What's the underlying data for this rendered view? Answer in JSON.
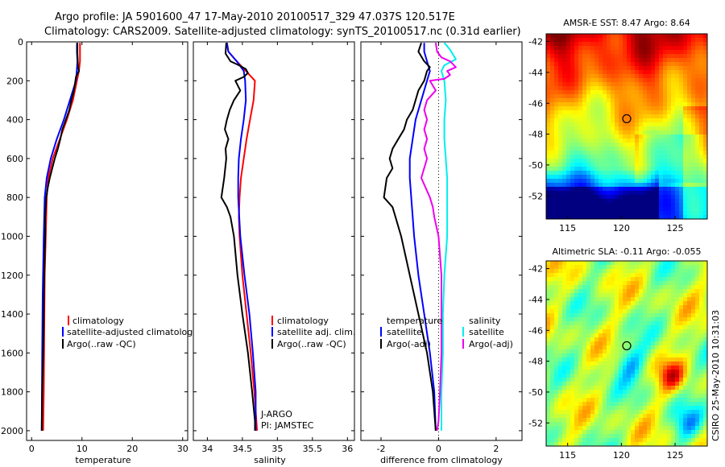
{
  "header": {
    "line1": "Argo profile: JA 5901600_47 17-May-2010 20100517_329 47.037S 120.517E",
    "line2": "Climatology: CARS2009. Satellite-adjusted climatology: synTS_20100517.nc (0.31d earlier)"
  },
  "colors": {
    "climatology": "#ff0000",
    "satellite": "#0000ff",
    "argo": "#000000",
    "sat_diff": "#00eeee",
    "argo_sal_diff": "#ee00ee"
  },
  "chart_data": [
    {
      "type": "line",
      "name": "temperature",
      "xlabel": "temperature",
      "xlim": [
        -1,
        31
      ],
      "ylim": [
        2050,
        0
      ],
      "xticks": [
        "0",
        "10",
        "20",
        "30"
      ],
      "yticks": [
        "0",
        "200",
        "400",
        "600",
        "800",
        "1000",
        "1200",
        "1400",
        "1600",
        "1800",
        "2000"
      ],
      "legend": [
        "climatology",
        "satellite-adjusted climatology",
        "Argo(..raw -QC)"
      ],
      "series": [
        {
          "name": "climatology",
          "x": [
            9.6,
            9.6,
            9.6,
            9.4,
            9.0,
            8.2,
            7.0,
            5.6,
            4.2,
            3.3,
            3.0,
            2.8,
            2.6,
            2.5,
            2.4,
            2.3
          ],
          "y": [
            5,
            50,
            100,
            150,
            200,
            300,
            400,
            500,
            600,
            700,
            800,
            1000,
            1200,
            1500,
            1800,
            2000
          ]
        },
        {
          "name": "satellite-adjusted climatology",
          "x": [
            9.0,
            9.0,
            9.1,
            9.0,
            8.8,
            7.6,
            6.4,
            5.0,
            3.8,
            3.0,
            2.6,
            2.4,
            2.2,
            2.1,
            2.0
          ],
          "y": [
            5,
            50,
            100,
            140,
            200,
            300,
            400,
            500,
            600,
            700,
            800,
            1000,
            1300,
            1600,
            2000
          ]
        },
        {
          "name": "Argo(..raw -QC)",
          "x": [
            9.1,
            9.1,
            9.2,
            9.4,
            8.8,
            8.4,
            7.9,
            7.5,
            6.8,
            6.1,
            5.7,
            5.2,
            4.6,
            4.1,
            3.6,
            3.2,
            2.9,
            2.8,
            2.7,
            2.7,
            2.5,
            2.4,
            2.3,
            2.1,
            2.0
          ],
          "y": [
            5,
            60,
            120,
            150,
            180,
            250,
            300,
            350,
            400,
            450,
            500,
            550,
            600,
            650,
            700,
            750,
            800,
            850,
            900,
            1000,
            1200,
            1400,
            1600,
            1800,
            2000
          ]
        }
      ]
    },
    {
      "type": "line",
      "name": "salinity",
      "xlabel": "salinity",
      "xlim": [
        33.8,
        36.1
      ],
      "ylim": [
        2050,
        0
      ],
      "xticks": [
        "34",
        "34.5",
        "35",
        "35.5",
        "36"
      ],
      "legend": [
        "climatology",
        "satellite adj. clim.",
        "Argo(..raw -QC)"
      ],
      "annotations": [
        "J-ARGO",
        "PI: JAMSTEC"
      ],
      "series": [
        {
          "name": "climatology",
          "x": [
            34.28,
            34.3,
            34.42,
            34.55,
            34.68,
            34.66,
            34.61,
            34.56,
            34.52,
            34.48,
            34.46,
            34.45,
            34.46,
            34.5,
            34.56,
            34.62,
            34.67,
            34.7,
            34.71
          ],
          "y": [
            5,
            50,
            100,
            150,
            200,
            300,
            400,
            500,
            600,
            700,
            800,
            900,
            1000,
            1200,
            1400,
            1600,
            1800,
            1950,
            2000
          ]
        },
        {
          "name": "satellite adj. clim.",
          "x": [
            34.28,
            34.3,
            34.42,
            34.52,
            34.54,
            34.55,
            34.52,
            34.48,
            34.45,
            34.44,
            34.44,
            34.47,
            34.53,
            34.6,
            34.65,
            34.69,
            34.69
          ],
          "y": [
            5,
            50,
            100,
            150,
            200,
            300,
            400,
            500,
            600,
            700,
            800,
            1000,
            1200,
            1400,
            1600,
            1800,
            2000
          ]
        },
        {
          "name": "Argo(..raw -QC)",
          "x": [
            34.27,
            34.26,
            34.33,
            34.45,
            34.55,
            34.58,
            34.52,
            34.4,
            34.47,
            34.38,
            34.32,
            34.28,
            34.25,
            34.3,
            34.26,
            34.27,
            34.24,
            34.2,
            34.28,
            34.33,
            34.38,
            34.43,
            34.5,
            34.58,
            34.64,
            34.68,
            34.68
          ],
          "y": [
            5,
            60,
            100,
            120,
            140,
            160,
            180,
            200,
            250,
            300,
            350,
            400,
            450,
            500,
            550,
            600,
            700,
            800,
            850,
            900,
            1000,
            1200,
            1400,
            1600,
            1800,
            1950,
            2000
          ]
        }
      ]
    },
    {
      "type": "line",
      "name": "difference",
      "xlabel": "difference from climatology",
      "xlim": [
        -2.7,
        2.9
      ],
      "ylim": [
        2050,
        0
      ],
      "xticks": [
        "-2",
        "0",
        "2"
      ],
      "legend_temperature": [
        "temperature",
        "satellite",
        "Argo(-adj)"
      ],
      "legend_salinity": [
        "salinity",
        "satellite",
        "Argo(-adj)"
      ],
      "series": [
        {
          "name": "temperature satellite",
          "x": [
            -0.5,
            -0.5,
            -0.4,
            -0.3,
            -0.4,
            -0.6,
            -0.8,
            -0.9,
            -1.0,
            -1.0,
            -0.95,
            -0.9,
            -0.85,
            -0.7,
            -0.5,
            -0.3,
            -0.15,
            -0.1
          ],
          "y": [
            5,
            50,
            100,
            150,
            200,
            300,
            400,
            500,
            600,
            700,
            800,
            900,
            1000,
            1200,
            1400,
            1600,
            1800,
            2000
          ]
        },
        {
          "name": "temperature Argo(-adj)",
          "x": [
            -0.6,
            -0.7,
            -0.5,
            -0.3,
            -0.4,
            -0.5,
            -0.7,
            -0.8,
            -0.9,
            -1.1,
            -1.2,
            -1.4,
            -1.6,
            -1.7,
            -1.6,
            -1.8,
            -1.9,
            -1.6,
            -1.5,
            -1.3,
            -1.0,
            -0.7,
            -0.4,
            -0.2,
            -0.1
          ],
          "y": [
            5,
            50,
            100,
            130,
            150,
            200,
            250,
            300,
            350,
            400,
            450,
            500,
            550,
            600,
            650,
            700,
            800,
            850,
            900,
            1000,
            1200,
            1400,
            1600,
            1800,
            2000
          ]
        },
        {
          "name": "salinity satellite",
          "x": [
            0.2,
            0.4,
            0.6,
            0.2,
            0.1,
            0.2,
            0.25,
            0.2,
            0.2,
            0.25,
            0.3,
            0.3,
            0.3,
            0.3,
            0.2,
            0.15,
            0.15,
            0.1,
            0.1,
            0.1
          ],
          "y": [
            5,
            40,
            90,
            120,
            150,
            200,
            300,
            400,
            500,
            600,
            700,
            800,
            900,
            1000,
            1200,
            1400,
            1600,
            1800,
            1900,
            2000
          ]
        },
        {
          "name": "salinity Argo(-adj)",
          "x": [
            -0.1,
            -0.05,
            0.1,
            0.4,
            0.6,
            0.3,
            0.4,
            0.2,
            -0.3,
            -0.1,
            -0.4,
            -0.5,
            -0.4,
            -0.5,
            -0.4,
            -0.5,
            -0.4,
            -0.6,
            -0.3,
            -0.2,
            -0.15,
            0.0,
            0.1,
            0.1,
            0.1,
            0.05,
            0.0,
            -0.05
          ],
          "y": [
            5,
            50,
            80,
            100,
            130,
            150,
            170,
            190,
            200,
            250,
            300,
            350,
            400,
            450,
            500,
            550,
            600,
            700,
            800,
            850,
            900,
            1000,
            1200,
            1400,
            1600,
            1800,
            1950,
            2000
          ]
        }
      ]
    },
    {
      "type": "heatmap",
      "name": "sst",
      "title": "AMSR-E SST: 8.47  Argo: 8.64",
      "xlim": [
        113,
        128
      ],
      "ylim": [
        -53.5,
        -41.5
      ],
      "xticks": [
        "115",
        "120",
        "125"
      ],
      "yticks": [
        "-42",
        "-44",
        "-46",
        "-48",
        "-50",
        "-52"
      ],
      "marker": {
        "lon": 120.5,
        "lat": -47.0
      }
    },
    {
      "type": "heatmap",
      "name": "sla",
      "title": "Altimetric SLA: -0.11  Argo: -0.055",
      "xlim": [
        113,
        128
      ],
      "ylim": [
        -53.5,
        -41.5
      ],
      "xticks": [
        "115",
        "120",
        "125"
      ],
      "yticks": [
        "-42",
        "-44",
        "-46",
        "-48",
        "-50",
        "-52"
      ],
      "marker": {
        "lon": 120.5,
        "lat": -47.0
      }
    }
  ],
  "footer": {
    "stamp": "CSIRO 25-May-2010 10:31:03"
  }
}
